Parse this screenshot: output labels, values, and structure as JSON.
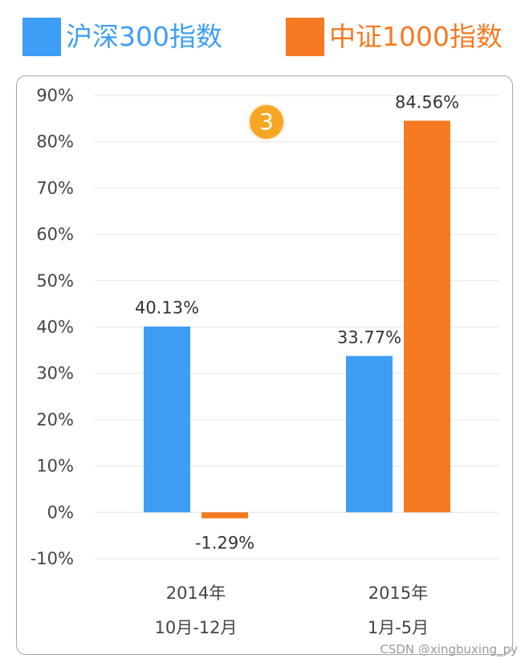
{
  "badge": "3",
  "watermark": "CSDN @xingbuxing_py",
  "chart_data": {
    "type": "bar",
    "title": "",
    "xlabel": "",
    "ylabel": "",
    "ylim": [
      -10,
      90
    ],
    "yticks": [
      -10,
      0,
      10,
      20,
      30,
      40,
      50,
      60,
      70,
      80,
      90
    ],
    "ytick_labels": [
      "-10%",
      "0%",
      "10%",
      "20%",
      "30%",
      "40%",
      "50%",
      "60%",
      "70%",
      "80%",
      "90%"
    ],
    "grid": true,
    "legend_position": "top",
    "categories": [
      {
        "line1": "2014年",
        "line2": "10月-12月"
      },
      {
        "line1": "2015年",
        "line2": "1月-5月"
      }
    ],
    "series": [
      {
        "name": "沪深300指数",
        "color": "#3e9ef5",
        "values": [
          40.13,
          33.77
        ],
        "labels": [
          "40.13%",
          "33.77%"
        ]
      },
      {
        "name": "中证1000指数",
        "color": "#f57a22",
        "values": [
          -1.29,
          84.56
        ],
        "labels": [
          "-1.29%",
          "84.56%"
        ]
      }
    ]
  }
}
